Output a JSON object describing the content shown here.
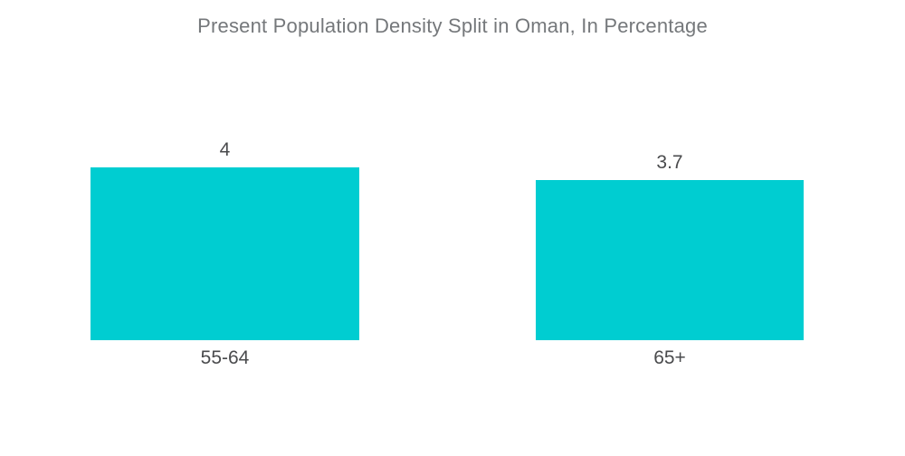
{
  "title": "Present Population Density Split in Oman, In Percentage",
  "colors": {
    "bar": "#00CDD1",
    "title_text": "#75787B",
    "label_text": "#4A4B4D",
    "background": "#FFFFFF"
  },
  "chart_data": {
    "type": "bar",
    "title": "Present Population Density Split in Oman, In Percentage",
    "categories": [
      "55-64",
      "65+"
    ],
    "values": [
      4,
      3.7
    ],
    "value_labels": [
      "4",
      "3.7"
    ],
    "xlabel": "",
    "ylabel": "",
    "ylim": [
      0,
      4.2
    ],
    "grid": false,
    "legend": false,
    "axes_visible": false,
    "bar_color": "#00CDD1"
  }
}
